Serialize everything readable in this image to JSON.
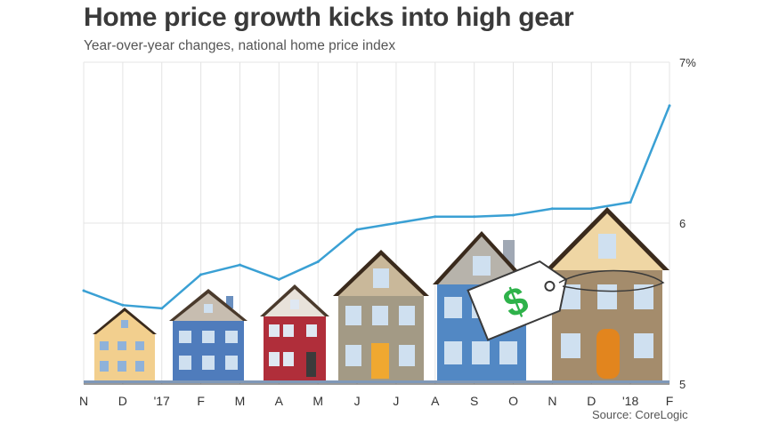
{
  "chart_data": {
    "type": "line",
    "title": "Home price growth kicks into high gear",
    "subtitle": "Year-over-year changes, national home price index",
    "source": "Source: CoreLogic",
    "xlabel": "",
    "ylabel": "",
    "categories": [
      "N",
      "D",
      "'17",
      "F",
      "M",
      "A",
      "M",
      "J",
      "J",
      "A",
      "S",
      "O",
      "N",
      "D",
      "'18",
      "F"
    ],
    "series": [
      {
        "name": "Year-over-year change",
        "color": "#3aa0d4",
        "values": [
          5.58,
          5.49,
          5.47,
          5.68,
          5.74,
          5.65,
          5.76,
          5.96,
          6.0,
          6.04,
          6.04,
          6.05,
          6.09,
          6.09,
          6.13,
          6.73
        ]
      }
    ],
    "ylim": [
      5,
      7
    ],
    "yticks": [
      {
        "value": 7,
        "label": "7%"
      },
      {
        "value": 6,
        "label": "6"
      },
      {
        "value": 5,
        "label": "5"
      }
    ],
    "grid": true,
    "legend": "none",
    "illustration": "row of houses with dollar price tag"
  }
}
